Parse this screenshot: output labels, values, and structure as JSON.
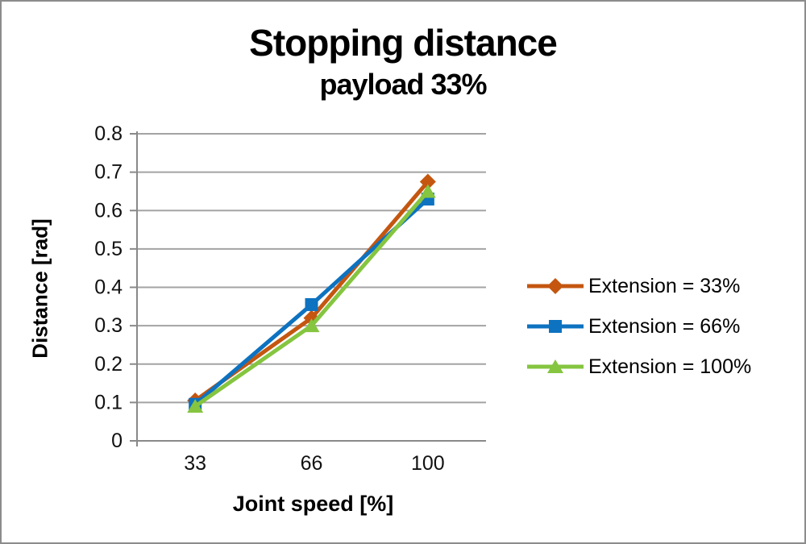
{
  "title": "Stopping distance",
  "subtitle": "payload 33%",
  "chart_data": {
    "type": "line",
    "title": "Stopping distance",
    "subtitle": "payload 33%",
    "xlabel": "Joint speed [%]",
    "ylabel": "Distance [rad]",
    "categories": [
      "33",
      "66",
      "100"
    ],
    "series": [
      {
        "name": "Extension = 33%",
        "marker": "diamond",
        "color": "#c45610",
        "values": [
          0.105,
          0.32,
          0.675
        ]
      },
      {
        "name": "Extension = 66%",
        "marker": "square",
        "color": "#0d72c0",
        "values": [
          0.095,
          0.355,
          0.63
        ]
      },
      {
        "name": "Extension = 100%",
        "marker": "triangle",
        "color": "#85c540",
        "values": [
          0.09,
          0.3,
          0.65
        ]
      }
    ],
    "ylim": [
      0,
      0.8
    ],
    "ytick_step": 0.1,
    "ytick_labels": [
      "0",
      "0.1",
      "0.2",
      "0.3",
      "0.4",
      "0.5",
      "0.6",
      "0.7",
      "0.8"
    ],
    "grid": true,
    "legend_position": "right"
  },
  "style_colors": {
    "gridline": "#a3a3a3",
    "axis_line": "#898989",
    "tick_text": "#111111",
    "frame_border": "#8c8c8c",
    "background": "#ffffff"
  }
}
